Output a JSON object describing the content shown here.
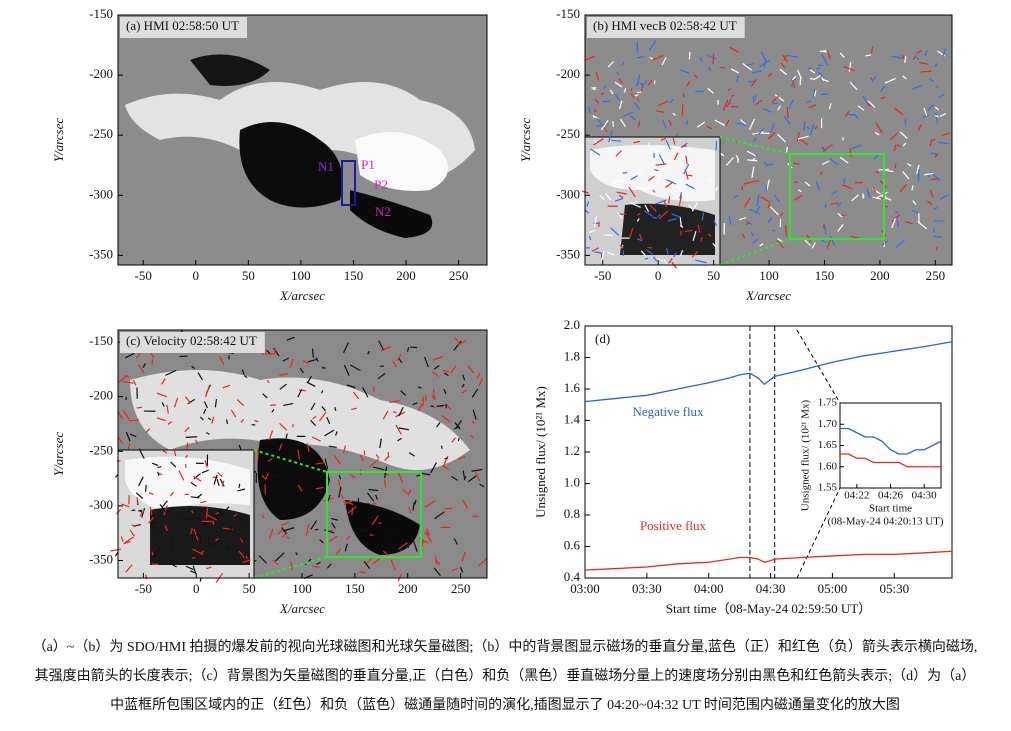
{
  "figure": {
    "panels": [
      {
        "label": "(a) HMI 02:58:50 UT",
        "xlabel": "X/arcsec",
        "ylabel": "Y/arcsec",
        "xlim": [
          -74,
          277
        ],
        "ylim": [
          -358,
          -150
        ],
        "xticks": [
          -50,
          0,
          50,
          100,
          150,
          200,
          250
        ],
        "yticks": [
          -150,
          -200,
          -250,
          -300,
          -350
        ],
        "annotations": [
          "N1",
          "P1",
          "P2",
          "N2"
        ]
      },
      {
        "label": "(b) HMI vecB 02:58:42 UT",
        "xlabel": "X/arcsec",
        "ylabel": "Y/arcsec",
        "xlim": [
          -66,
          265
        ],
        "ylim": [
          -358,
          -150
        ],
        "xticks": [
          -50,
          0,
          50,
          100,
          150,
          200,
          250
        ],
        "yticks": [
          -150,
          -200,
          -250,
          -300,
          -350
        ]
      },
      {
        "label": "(c) Velocity 02:58:42 UT",
        "xlabel": "X/arcsec",
        "ylabel": "Y/arcsec",
        "xlim": [
          -74,
          275
        ],
        "ylim": [
          -366,
          -139
        ],
        "xticks": [
          -50,
          0,
          50,
          100,
          150,
          200,
          250
        ],
        "yticks": [
          -150,
          -200,
          -250,
          -300,
          -350
        ]
      }
    ]
  },
  "chart_data": {
    "type": "line",
    "label": "(d)",
    "xlabel": "Start time（08-May-24 02:59:50 UT）",
    "ylabel": "Unsigned flux/ (10²¹ Mx)",
    "x": [
      "03:00",
      "03:15",
      "03:30",
      "03:45",
      "04:00",
      "04:10",
      "04:15",
      "04:20",
      "04:24",
      "04:27",
      "04:30",
      "04:32",
      "04:45",
      "05:00",
      "05:15",
      "05:30",
      "05:45",
      "05:58"
    ],
    "series": [
      {
        "name": "Negative flux",
        "color": "#2a5fe6",
        "values": [
          1.52,
          1.54,
          1.56,
          1.6,
          1.64,
          1.67,
          1.69,
          1.7,
          1.67,
          1.63,
          1.66,
          1.68,
          1.72,
          1.77,
          1.81,
          1.84,
          1.87,
          1.9
        ]
      },
      {
        "name": "Positive flux",
        "color": "#e8281e",
        "values": [
          0.45,
          0.46,
          0.47,
          0.49,
          0.5,
          0.52,
          0.53,
          0.53,
          0.52,
          0.5,
          0.51,
          0.52,
          0.53,
          0.54,
          0.55,
          0.55,
          0.56,
          0.57
        ]
      }
    ],
    "xlim": [
      "03:00",
      "05:58"
    ],
    "ylim": [
      0.4,
      2.0
    ],
    "xticks": [
      "03:00",
      "03:30",
      "04:00",
      "04:30",
      "05:00",
      "05:30"
    ],
    "yticks": [
      0.4,
      0.6,
      0.8,
      {
        "value": 1.0,
        "label": "1.0"
      },
      1.2,
      1.4,
      1.6,
      1.8,
      {
        "value": 2.0,
        "label": "2.0"
      }
    ],
    "zoom_range": [
      "04:20",
      "04:32"
    ],
    "inset": {
      "x": [
        "04:20",
        "04:21",
        "04:22",
        "04:23",
        "04:24",
        "04:25",
        "04:26",
        "04:27",
        "04:28",
        "04:29",
        "04:30",
        "04:31",
        "04:32"
      ],
      "series": [
        {
          "values": [
            1.69,
            1.69,
            1.68,
            1.67,
            1.67,
            1.66,
            1.64,
            1.63,
            1.63,
            1.64,
            1.64,
            1.65,
            1.66
          ]
        },
        {
          "values": [
            1.63,
            1.63,
            1.62,
            1.62,
            1.61,
            1.61,
            1.61,
            1.61,
            1.6,
            1.6,
            1.6,
            1.6,
            1.6
          ]
        }
      ],
      "xlim": [
        "04:20",
        "04:32"
      ],
      "ylim": [
        1.55,
        1.75
      ],
      "xticks": [
        "04:22",
        "04:26",
        "04:30"
      ],
      "yticks": [
        1.55,
        {
          "value": 1.6,
          "label": "1.60"
        },
        1.65,
        {
          "value": 1.7,
          "label": "1.70"
        },
        1.75
      ],
      "xlabel": "Start time",
      "xlabel2": "(08-May-24 04:20:13 UT)",
      "ylabel": "Unsigned flux/ (10²¹ Mx)"
    }
  },
  "caption": [
    "（a）~（b）为 SDO/HMI 拍摄的爆发前的视向光球磁图和光球矢量磁图;（b）中的背景图显示磁场的垂直分量,蓝色（正）和红色（负）箭头表示横向磁场,",
    "其强度由箭头的长度表示;（c）背景图为矢量磁图的垂直分量,正（白色）和负（黑色）垂直磁场分量上的速度场分别由黑色和红色箭头表示;（d）为（a）",
    "中蓝框所包围区域内的正（红色）和负（蓝色）磁通量随时间的演化,插图显示了 04:20~04:32 UT 时间范围内磁通量变化的放大图"
  ]
}
